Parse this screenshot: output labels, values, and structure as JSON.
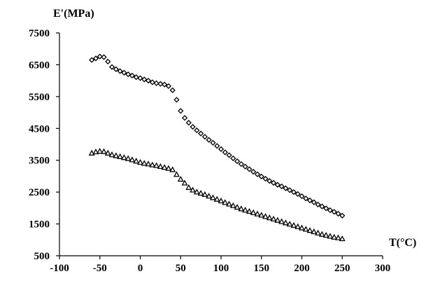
{
  "chart_data": {
    "type": "scatter",
    "title": "",
    "xlabel": "T(°C)",
    "ylabel": "E'(MPa)",
    "xlim": [
      -100,
      300
    ],
    "ylim": [
      500,
      7500
    ],
    "x_ticks": [
      -100,
      -50,
      0,
      50,
      100,
      150,
      200,
      250,
      300
    ],
    "y_ticks": [
      500,
      1500,
      2500,
      3500,
      4500,
      5500,
      6500,
      7500
    ],
    "x_tick_labels": [
      "-100",
      "-50",
      "0",
      "50",
      "100",
      "150",
      "200",
      "250",
      "300"
    ],
    "y_tick_labels": [
      "500",
      "1500",
      "2500",
      "3500",
      "4500",
      "5500",
      "6500",
      "7500"
    ],
    "grid": false,
    "legend": "none",
    "series": [
      {
        "marker": "diamond",
        "color": "#000000",
        "x": [
          -60,
          -55,
          -50,
          -45,
          -40,
          -35,
          -30,
          -25,
          -20,
          -15,
          -10,
          -5,
          0,
          5,
          10,
          15,
          20,
          25,
          30,
          35,
          40,
          45,
          50,
          55,
          60,
          65,
          70,
          75,
          80,
          85,
          90,
          95,
          100,
          105,
          110,
          115,
          120,
          125,
          130,
          135,
          140,
          145,
          150,
          155,
          160,
          165,
          170,
          175,
          180,
          185,
          190,
          195,
          200,
          205,
          210,
          215,
          220,
          225,
          230,
          235,
          240,
          245,
          250
        ],
        "y": [
          6650,
          6700,
          6760,
          6740,
          6600,
          6430,
          6360,
          6300,
          6250,
          6200,
          6160,
          6110,
          6080,
          6040,
          6000,
          5950,
          5920,
          5900,
          5880,
          5830,
          5700,
          5400,
          5050,
          4830,
          4680,
          4550,
          4440,
          4340,
          4240,
          4140,
          4050,
          3950,
          3850,
          3750,
          3660,
          3560,
          3470,
          3380,
          3300,
          3220,
          3140,
          3060,
          2990,
          2920,
          2850,
          2790,
          2730,
          2680,
          2620,
          2560,
          2500,
          2440,
          2370,
          2300,
          2240,
          2180,
          2110,
          2050,
          1990,
          1930,
          1880,
          1820,
          1760
        ]
      },
      {
        "marker": "triangle",
        "color": "#000000",
        "x": [
          -60,
          -55,
          -50,
          -45,
          -40,
          -35,
          -30,
          -25,
          -20,
          -15,
          -10,
          -5,
          0,
          5,
          10,
          15,
          20,
          25,
          30,
          35,
          40,
          45,
          50,
          55,
          60,
          65,
          70,
          75,
          80,
          85,
          90,
          95,
          100,
          105,
          110,
          115,
          120,
          125,
          130,
          135,
          140,
          145,
          150,
          155,
          160,
          165,
          170,
          175,
          180,
          185,
          190,
          195,
          200,
          205,
          210,
          215,
          220,
          225,
          230,
          235,
          240,
          245,
          250
        ],
        "y": [
          3720,
          3760,
          3780,
          3770,
          3720,
          3670,
          3640,
          3610,
          3580,
          3550,
          3510,
          3470,
          3430,
          3400,
          3380,
          3350,
          3330,
          3300,
          3270,
          3240,
          3200,
          3050,
          2900,
          2780,
          2640,
          2560,
          2500,
          2460,
          2420,
          2370,
          2320,
          2270,
          2220,
          2170,
          2120,
          2070,
          2020,
          1970,
          1930,
          1890,
          1850,
          1810,
          1770,
          1730,
          1690,
          1650,
          1610,
          1570,
          1530,
          1490,
          1450,
          1410,
          1370,
          1330,
          1290,
          1250,
          1210,
          1170,
          1140,
          1110,
          1080,
          1060,
          1030
        ]
      }
    ]
  }
}
